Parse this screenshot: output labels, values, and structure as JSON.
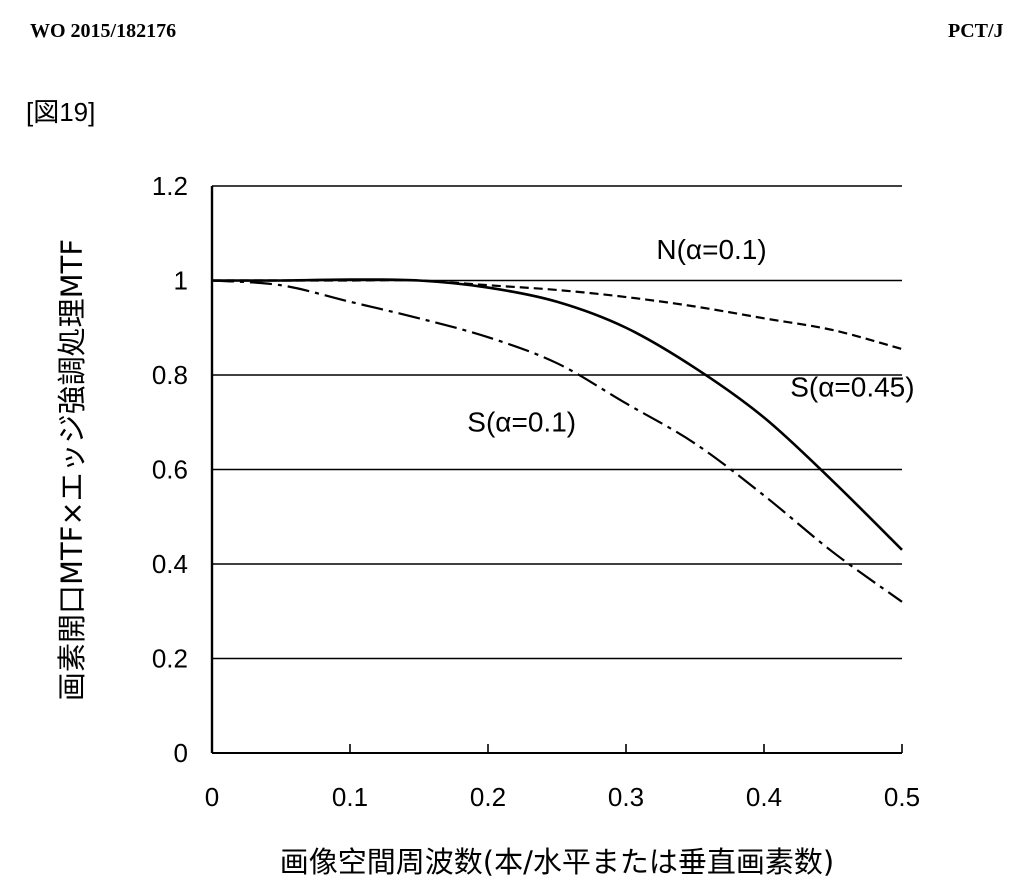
{
  "header": {
    "publication_number": "WO 2015/182176",
    "application_number": "PCT/J"
  },
  "figure_label": "[図19]",
  "chart_data": {
    "type": "line",
    "xlabel": "画像空間周波数(本/水平または垂直画素数)",
    "ylabel": "画素開口MTF×エッジ強調処理MTF",
    "xlim": [
      0,
      0.5
    ],
    "ylim": [
      0,
      1.2
    ],
    "xticks": [
      0,
      0.1,
      0.2,
      0.3,
      0.4,
      0.5
    ],
    "xtick_labels": [
      "0",
      "0.1",
      "0.2",
      "0.3",
      "0.4",
      "0.5"
    ],
    "yticks": [
      0,
      0.2,
      0.4,
      0.6,
      0.8,
      1,
      1.2
    ],
    "ytick_labels": [
      "0",
      "0.2",
      "0.4",
      "0.6",
      "0.8",
      "1",
      "1.2"
    ],
    "grid": "horizontal",
    "series": [
      {
        "name": "N(α=0.1)",
        "style": "dashed",
        "x": [
          0,
          0.05,
          0.1,
          0.15,
          0.2,
          0.25,
          0.3,
          0.35,
          0.4,
          0.45,
          0.5
        ],
        "y": [
          1.0,
          1.0,
          1.0,
          1.0,
          0.99,
          0.98,
          0.965,
          0.945,
          0.92,
          0.895,
          0.855
        ]
      },
      {
        "name": "S(α=0.45)",
        "style": "solid",
        "x": [
          0,
          0.05,
          0.1,
          0.15,
          0.2,
          0.25,
          0.3,
          0.35,
          0.4,
          0.45,
          0.5
        ],
        "y": [
          1.0,
          1.0,
          1.002,
          1.0,
          0.985,
          0.955,
          0.9,
          0.815,
          0.71,
          0.575,
          0.43
        ]
      },
      {
        "name": "S(α=0.1)",
        "style": "dashdot",
        "x": [
          0,
          0.05,
          0.1,
          0.15,
          0.2,
          0.25,
          0.3,
          0.35,
          0.4,
          0.45,
          0.5
        ],
        "y": [
          1.0,
          0.99,
          0.955,
          0.92,
          0.88,
          0.825,
          0.74,
          0.655,
          0.545,
          0.425,
          0.32
        ]
      }
    ],
    "annotations": [
      {
        "text": "N(α=0.1)",
        "x": 0.322,
        "y": 1.045,
        "series": "N(α=0.1)"
      },
      {
        "text": "S(α=0.45)",
        "x": 0.419,
        "y": 0.755,
        "series": "S(α=0.45)"
      },
      {
        "text": "S(α=0.1)",
        "x": 0.185,
        "y": 0.68,
        "series": "S(α=0.1)"
      }
    ]
  }
}
